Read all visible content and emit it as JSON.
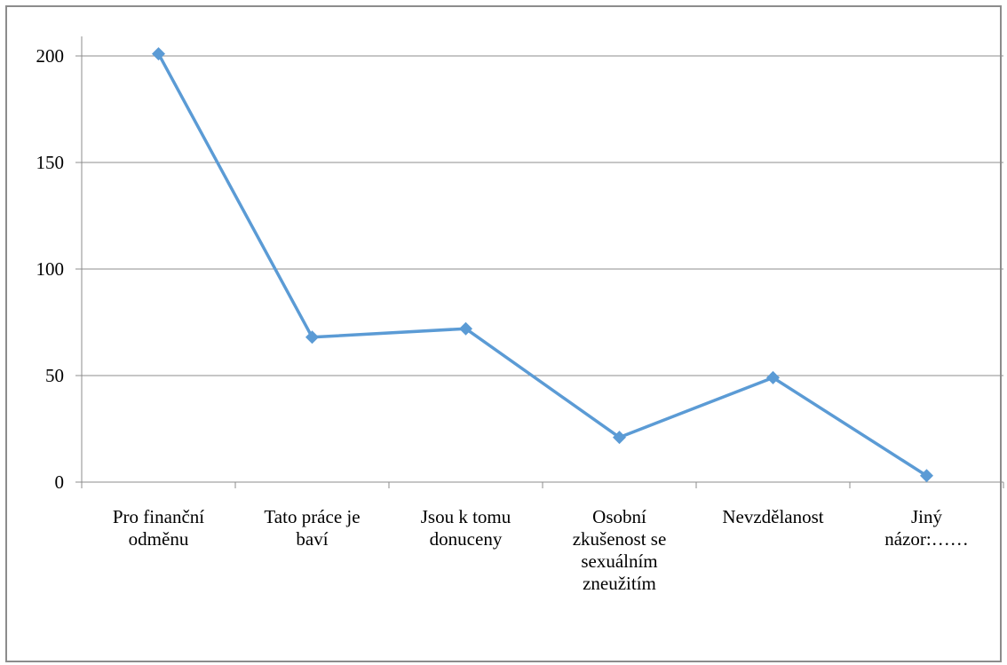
{
  "chart_data": {
    "type": "line",
    "title": "",
    "xlabel": "",
    "ylabel": "",
    "categories": [
      [
        "Pro finanční",
        "odměnu"
      ],
      [
        "Tato práce je",
        "baví"
      ],
      [
        "Jsou k tomu",
        "donuceny"
      ],
      [
        "Osobní",
        "zkušenost se",
        "sexuálním",
        "zneužitím"
      ],
      [
        "Nevzdělanost"
      ],
      [
        "Jiný",
        "názor:……"
      ]
    ],
    "series": [
      {
        "values": [
          201,
          68,
          72,
          21,
          49,
          3
        ]
      }
    ],
    "ylim": [
      0,
      200
    ],
    "yticks": [
      0,
      50,
      100,
      150,
      200
    ],
    "grid": true,
    "legend": "none",
    "colors": {
      "line": "#5b9bd5",
      "grid": "#8c8c8c",
      "axis": "#8c8c8c"
    }
  }
}
